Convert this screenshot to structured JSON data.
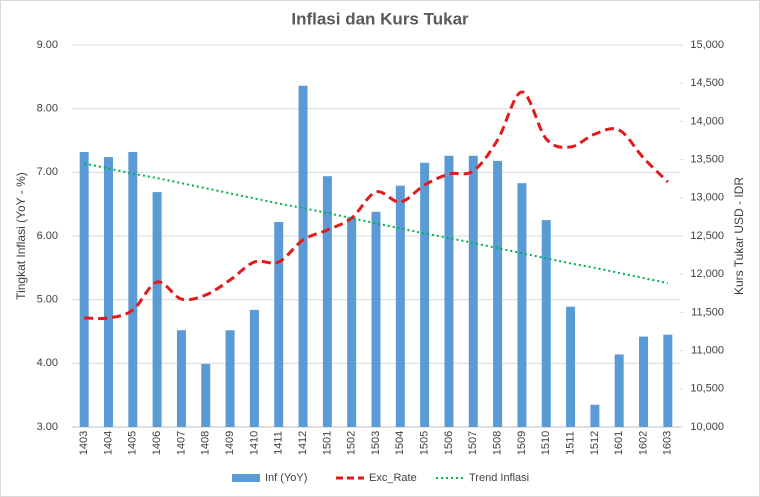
{
  "chart_data": {
    "type": "bar_line",
    "title": "Inflasi dan Kurs Tukar",
    "y_label": "Tingkat Inflasi (YoY - %)",
    "y2_label": "Kurs Tukar USD - IDR",
    "categories": [
      "1403",
      "1404",
      "1405",
      "1406",
      "1407",
      "1408",
      "1409",
      "1410",
      "1411",
      "1412",
      "1501",
      "1502",
      "1503",
      "1504",
      "1505",
      "1506",
      "1507",
      "1508",
      "1509",
      "1510",
      "1511",
      "1512",
      "1601",
      "1602",
      "1603"
    ],
    "series": [
      {
        "name": "Inf (YoY)",
        "kind": "bar",
        "color": "#5b9bd5",
        "values": [
          7.32,
          7.24,
          7.32,
          6.69,
          4.52,
          3.99,
          4.52,
          4.84,
          6.22,
          8.36,
          6.94,
          6.29,
          6.38,
          6.79,
          7.15,
          7.26,
          7.26,
          7.18,
          6.83,
          6.25,
          4.89,
          3.35,
          4.14,
          4.42,
          4.45
        ]
      },
      {
        "name": "Exc_Rate",
        "kind": "dashed-line",
        "axis": "y2",
        "color": "#e31a1c",
        "values": [
          11427,
          11427,
          11531,
          11898,
          11675,
          11728,
          11924,
          12160,
          12160,
          12448,
          12579,
          12736,
          13076,
          12945,
          13168,
          13311,
          13351,
          13757,
          14385,
          13770,
          13665,
          13835,
          13887,
          13521,
          13207
        ]
      },
      {
        "name": "Trend Inflasi",
        "kind": "dotted-line",
        "color": "#00b050",
        "values": [
          7.14,
          7.06,
          6.98,
          6.91,
          6.83,
          6.75,
          6.67,
          6.59,
          6.51,
          6.44,
          6.36,
          6.28,
          6.2,
          6.12,
          6.04,
          5.97,
          5.89,
          5.81,
          5.73,
          5.65,
          5.57,
          5.5,
          5.42,
          5.34,
          5.26
        ]
      }
    ],
    "ylim": [
      3,
      9
    ],
    "yticks": [
      {
        "value": 3,
        "label": "3.00"
      },
      {
        "value": 4,
        "label": "4.00"
      },
      {
        "value": 5,
        "label": "5.00"
      },
      {
        "value": 6,
        "label": "6.00"
      },
      {
        "value": 7,
        "label": "7.00"
      },
      {
        "value": 8,
        "label": "8.00"
      },
      {
        "value": 9,
        "label": "9.00"
      }
    ],
    "y2lim": [
      10000,
      15000
    ],
    "y2ticks": [
      {
        "value": 10000,
        "label": "10,000"
      },
      {
        "value": 10500,
        "label": "10,500"
      },
      {
        "value": 11000,
        "label": "11,000"
      },
      {
        "value": 11500,
        "label": "11,500"
      },
      {
        "value": 12000,
        "label": "12,000"
      },
      {
        "value": 12500,
        "label": "12,500"
      },
      {
        "value": 13000,
        "label": "13,000"
      },
      {
        "value": 13500,
        "label": "13,500"
      },
      {
        "value": 14000,
        "label": "14,000"
      },
      {
        "value": 14500,
        "label": "14,500"
      },
      {
        "value": 15000,
        "label": "15,000"
      }
    ],
    "grid": true,
    "legend": "bottom"
  }
}
